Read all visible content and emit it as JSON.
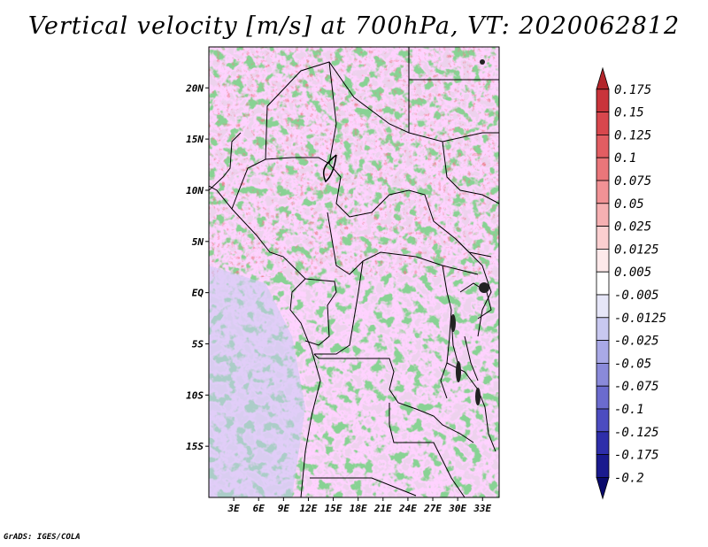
{
  "title": "Vertical velocity [m/s] at 700hPa, VT: 2020062812",
  "credit": "GrADS: IGES/COLA",
  "axes": {
    "lat_labels": [
      "20N",
      "15N",
      "10N",
      "5N",
      "EQ",
      "5S",
      "10S",
      "15S"
    ],
    "lat_values": [
      20,
      15,
      10,
      5,
      0,
      -5,
      -10,
      -15
    ],
    "lon_labels": [
      "3E",
      "6E",
      "9E",
      "12E",
      "15E",
      "18E",
      "21E",
      "24E",
      "27E",
      "30E",
      "33E"
    ],
    "lon_values": [
      3,
      6,
      9,
      12,
      15,
      18,
      21,
      24,
      27,
      30,
      33
    ],
    "lon_range": [
      0,
      35
    ],
    "lat_range": [
      -20,
      24
    ]
  },
  "colorbar": {
    "labels": [
      "0.175",
      "0.15",
      "0.125",
      "0.1",
      "0.075",
      "0.05",
      "0.025",
      "0.0125",
      "0.005",
      "-0.005",
      "-0.0125",
      "-0.025",
      "-0.05",
      "-0.075",
      "-0.1",
      "-0.125",
      "-0.175",
      "-0.2"
    ],
    "colors": [
      "#b3262b",
      "#c9343b",
      "#d8474d",
      "#e25d62",
      "#ea767a",
      "#f19295",
      "#f6b0b2",
      "#fbcfd0",
      "#fde9ea",
      "#ffffff",
      "#e6e6f8",
      "#c8c8f0",
      "#a9a9e6",
      "#8a8ada",
      "#6b6bce",
      "#4c4cc0",
      "#2e2eaa",
      "#1a1a8e",
      "#0a0a6c"
    ]
  }
}
